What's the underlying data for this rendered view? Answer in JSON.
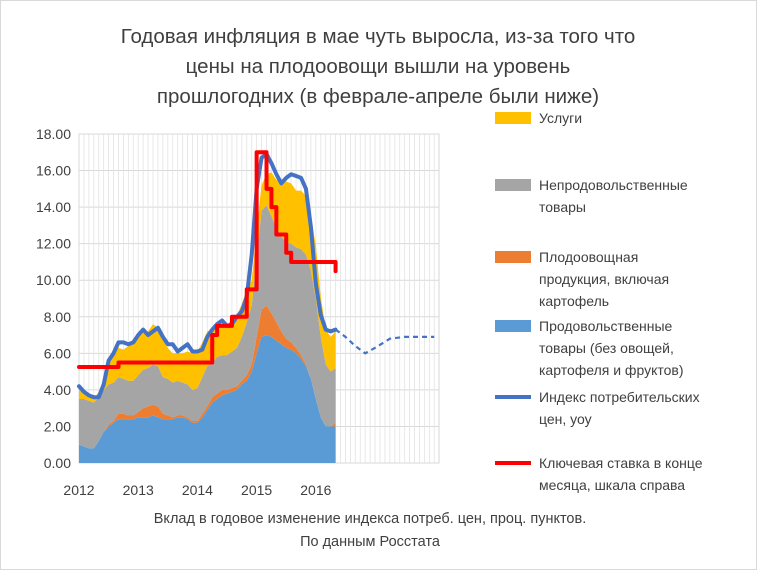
{
  "chart_data": {
    "type": "area",
    "title_lines": [
      "Годовая инфляция в мае чуть выросла, из-за того что",
      "цены на плодоовощи вышли на уровень",
      "прошлогодних (в феврале-апреле были ниже)"
    ],
    "caption_lines": [
      "Вклад в годовое изменение  индекса потреб. цен, проц. пунктов.",
      "По данным Росстата"
    ],
    "ylim": [
      0,
      18
    ],
    "yticks": [
      "0.00",
      "2.00",
      "4.00",
      "6.00",
      "8.00",
      "10.00",
      "12.00",
      "14.00",
      "16.00",
      "18.00"
    ],
    "xlim": [
      2012,
      2018.08
    ],
    "xticks": [
      {
        "value": 2012,
        "label": "2012"
      },
      {
        "value": 2013,
        "label": "2013"
      },
      {
        "value": 2014,
        "label": "2014"
      },
      {
        "value": 2015,
        "label": "2015"
      },
      {
        "value": 2016,
        "label": "2016"
      }
    ],
    "grid": true,
    "legend_position": "right",
    "x": [
      2012.0,
      2012.083,
      2012.167,
      2012.25,
      2012.333,
      2012.417,
      2012.5,
      2012.583,
      2012.667,
      2012.75,
      2012.833,
      2012.917,
      2013.0,
      2013.083,
      2013.167,
      2013.25,
      2013.333,
      2013.417,
      2013.5,
      2013.583,
      2013.667,
      2013.75,
      2013.833,
      2013.917,
      2014.0,
      2014.083,
      2014.167,
      2014.25,
      2014.333,
      2014.417,
      2014.5,
      2014.583,
      2014.667,
      2014.75,
      2014.833,
      2014.917,
      2015.0,
      2015.083,
      2015.167,
      2015.25,
      2015.333,
      2015.417,
      2015.5,
      2015.583,
      2015.667,
      2015.75,
      2015.833,
      2015.917,
      2016.0,
      2016.083,
      2016.167,
      2016.25,
      2016.333
    ],
    "series": [
      {
        "name": "Продовольственные товары (без овощей, картофеля и фруктов)",
        "color": "#5B9BD5",
        "values": [
          1.0,
          0.9,
          0.8,
          0.8,
          1.2,
          1.7,
          2.0,
          2.2,
          2.4,
          2.4,
          2.4,
          2.4,
          2.5,
          2.5,
          2.5,
          2.6,
          2.5,
          2.4,
          2.4,
          2.4,
          2.5,
          2.5,
          2.4,
          2.2,
          2.2,
          2.5,
          2.9,
          3.3,
          3.5,
          3.7,
          3.8,
          3.9,
          4.0,
          4.3,
          4.5,
          5.0,
          6.0,
          6.9,
          7.0,
          6.9,
          6.7,
          6.5,
          6.3,
          6.2,
          6.0,
          5.7,
          5.3,
          4.6,
          3.5,
          2.5,
          2.0,
          2.0,
          2.0
        ]
      },
      {
        "name": "Плодоовощная продукция, включая картофель",
        "color": "#ED7D31",
        "values": [
          0.0,
          0.0,
          0.0,
          0.0,
          0.0,
          0.0,
          0.1,
          0.1,
          0.3,
          0.3,
          0.2,
          0.2,
          0.3,
          0.5,
          0.6,
          0.6,
          0.6,
          0.3,
          0.2,
          0.1,
          0.1,
          0.1,
          0.1,
          0.1,
          0.1,
          0.2,
          0.2,
          0.3,
          0.3,
          0.3,
          0.2,
          0.2,
          0.2,
          0.2,
          0.3,
          0.4,
          0.9,
          1.5,
          1.6,
          1.3,
          1.0,
          0.7,
          0.5,
          0.4,
          0.3,
          0.2,
          0.1,
          0.0,
          0.0,
          0.0,
          0.0,
          0.0,
          0.2
        ]
      },
      {
        "name": "Непродовольственные товары",
        "color": "#A5A5A5",
        "values": [
          2.5,
          2.6,
          2.6,
          2.5,
          2.4,
          2.3,
          2.2,
          2.1,
          2.0,
          1.9,
          1.9,
          1.9,
          2.0,
          2.1,
          2.1,
          2.2,
          2.2,
          2.0,
          2.0,
          1.9,
          1.9,
          1.8,
          1.8,
          1.7,
          1.8,
          2.0,
          2.2,
          1.9,
          2.0,
          1.9,
          1.9,
          2.0,
          2.1,
          2.4,
          2.9,
          3.2,
          4.4,
          5.4,
          5.5,
          5.3,
          5.2,
          5.2,
          5.3,
          5.4,
          5.5,
          5.8,
          6.0,
          5.9,
          5.5,
          4.4,
          3.4,
          3.0,
          3.0
        ]
      },
      {
        "name": "Услуги",
        "color": "#FFC000",
        "values": [
          0.7,
          0.4,
          0.2,
          0.2,
          0.3,
          0.5,
          1.3,
          1.6,
          1.6,
          1.6,
          1.9,
          2.1,
          2.2,
          2.1,
          2.0,
          2.2,
          2.1,
          2.1,
          1.7,
          1.6,
          1.5,
          1.6,
          1.8,
          2.0,
          2.0,
          1.9,
          1.9,
          1.8,
          1.6,
          1.6,
          1.6,
          1.8,
          1.8,
          1.8,
          1.8,
          1.4,
          1.4,
          1.4,
          1.7,
          2.4,
          2.6,
          3.0,
          3.3,
          3.3,
          3.1,
          3.2,
          3.2,
          3.0,
          2.9,
          2.2,
          1.9,
          1.9,
          2.0
        ]
      },
      {
        "name": "Индекс потребительских цен, уоу",
        "color": "#4472C4",
        "type": "line",
        "values": [
          4.2,
          3.9,
          3.7,
          3.6,
          3.6,
          4.3,
          5.6,
          6.0,
          6.6,
          6.6,
          6.5,
          6.6,
          7.0,
          7.3,
          7.0,
          7.2,
          7.4,
          6.9,
          6.5,
          6.5,
          6.1,
          6.3,
          6.5,
          6.1,
          6.1,
          6.2,
          6.9,
          7.3,
          7.6,
          7.8,
          7.5,
          7.6,
          8.0,
          8.3,
          9.1,
          11.4,
          15.0,
          16.7,
          16.9,
          16.4,
          15.8,
          15.3,
          15.6,
          15.8,
          15.7,
          15.6,
          15.0,
          12.9,
          9.8,
          8.1,
          7.3,
          7.2,
          7.3
        ]
      },
      {
        "name": "Ключевая ставка в конце месяца, шкала справа",
        "color": "#FF0000",
        "type": "step-line",
        "values": [
          5.25,
          5.25,
          5.25,
          5.25,
          5.25,
          5.25,
          5.25,
          5.25,
          5.5,
          5.5,
          5.5,
          5.5,
          5.5,
          5.5,
          5.5,
          5.5,
          5.5,
          5.5,
          5.5,
          5.5,
          5.5,
          5.5,
          5.5,
          5.5,
          5.5,
          5.5,
          5.5,
          7.0,
          7.5,
          7.5,
          7.5,
          8.0,
          8.0,
          8.0,
          9.5,
          9.5,
          17.0,
          17.0,
          15.0,
          14.0,
          12.5,
          12.5,
          11.5,
          11.0,
          11.0,
          11.0,
          11.0,
          11.0,
          11.0,
          11.0,
          11.0,
          11.0,
          10.5
        ]
      }
    ],
    "forecast": {
      "name": "Индекс потребительских цен, уоу (прогноз)",
      "color": "#4472C4",
      "style": "dashed",
      "x": [
        2016.333,
        2016.5,
        2016.667,
        2016.833,
        2017.0,
        2017.25,
        2017.5,
        2017.75,
        2018.0
      ],
      "values": [
        7.3,
        6.9,
        6.4,
        6.0,
        6.3,
        6.8,
        6.9,
        6.9,
        6.9
      ]
    },
    "legend": [
      {
        "label_lines": [
          "Услуги"
        ],
        "color": "#FFC000",
        "kind": "box"
      },
      {
        "label_lines": [
          "Непродовольственные",
          "товары"
        ],
        "color": "#A5A5A5",
        "kind": "box"
      },
      {
        "label_lines": [
          "Плодоовощная",
          "продукция, включая",
          "картофель"
        ],
        "color": "#ED7D31",
        "kind": "box"
      },
      {
        "label_lines": [
          "Продовольственные",
          "товары (без овощей,",
          "картофеля и фруктов)"
        ],
        "color": "#5B9BD5",
        "kind": "box"
      },
      {
        "label_lines": [
          "Индекс потребительских",
          "цен, уоу"
        ],
        "color": "#4472C4",
        "kind": "line"
      },
      {
        "label_lines": [
          "Ключевая ставка в конце",
          "месяца, шкала справа"
        ],
        "color": "#FF0000",
        "kind": "line"
      }
    ]
  }
}
